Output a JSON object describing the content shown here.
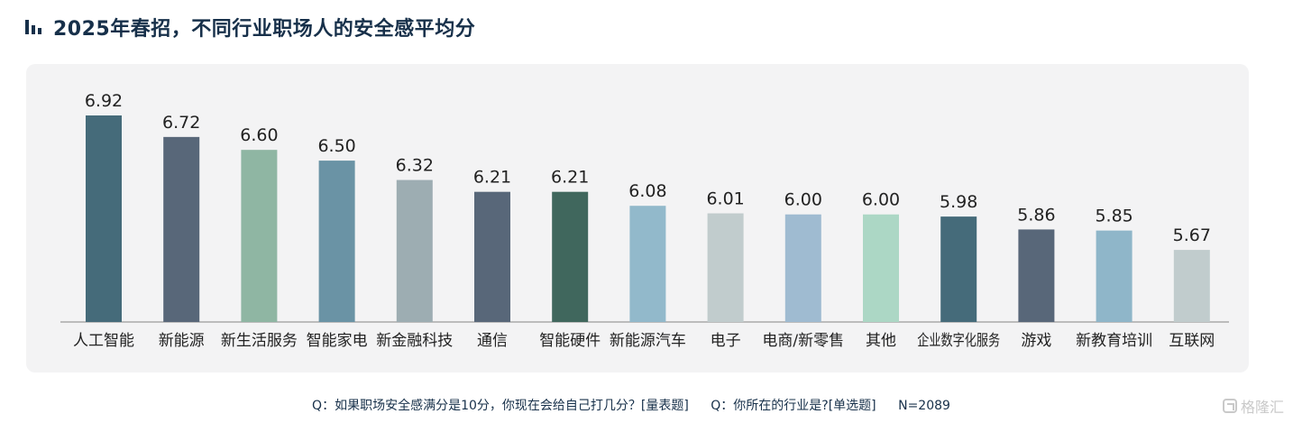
{
  "header": {
    "title": "2025年春招，不同行业职场人的安全感平均分",
    "icon": "bar-chart-icon"
  },
  "chart_data": {
    "type": "bar",
    "title": "2025年春招，不同行业职场人的安全感平均分",
    "xlabel": "",
    "ylabel": "",
    "ylim": [
      0,
      7
    ],
    "grid": false,
    "legend": "none",
    "categories": [
      "人工智能",
      "新能源",
      "新生活服务",
      "智能家电",
      "新金融科技",
      "通信",
      "智能硬件",
      "新能源汽车",
      "电子",
      "电商/新零售",
      "其他",
      "企业数字化服务",
      "游戏",
      "新教育培训",
      "互联网"
    ],
    "values": [
      6.92,
      6.72,
      6.6,
      6.5,
      6.32,
      6.21,
      6.21,
      6.08,
      6.01,
      6.0,
      6.0,
      5.98,
      5.86,
      5.85,
      5.67
    ],
    "value_labels": [
      "6.92",
      "6.72",
      "6.60",
      "6.50",
      "6.32",
      "6.21",
      "6.21",
      "6.08",
      "6.01",
      "6.00",
      "6.00",
      "5.98",
      "5.86",
      "5.85",
      "5.67"
    ],
    "bar_colors": [
      "#456b7a",
      "#586779",
      "#8fb6a3",
      "#6a93a5",
      "#9dadb2",
      "#586779",
      "#40675d",
      "#92b9cb",
      "#c1cccd",
      "#9fbbd1",
      "#acd7c5",
      "#456b7a",
      "#586779",
      "#8fb6c9",
      "#c1cccd"
    ]
  },
  "footnote": {
    "q1": "Q：如果职场安全感满分是10分，你现在会给自己打几分？[量表题]",
    "q2": "Q：你所在的行业是?[单选题]",
    "n": "N=2089"
  },
  "watermark": {
    "text": "格隆汇",
    "icon": "gelonghui-logo-icon"
  }
}
